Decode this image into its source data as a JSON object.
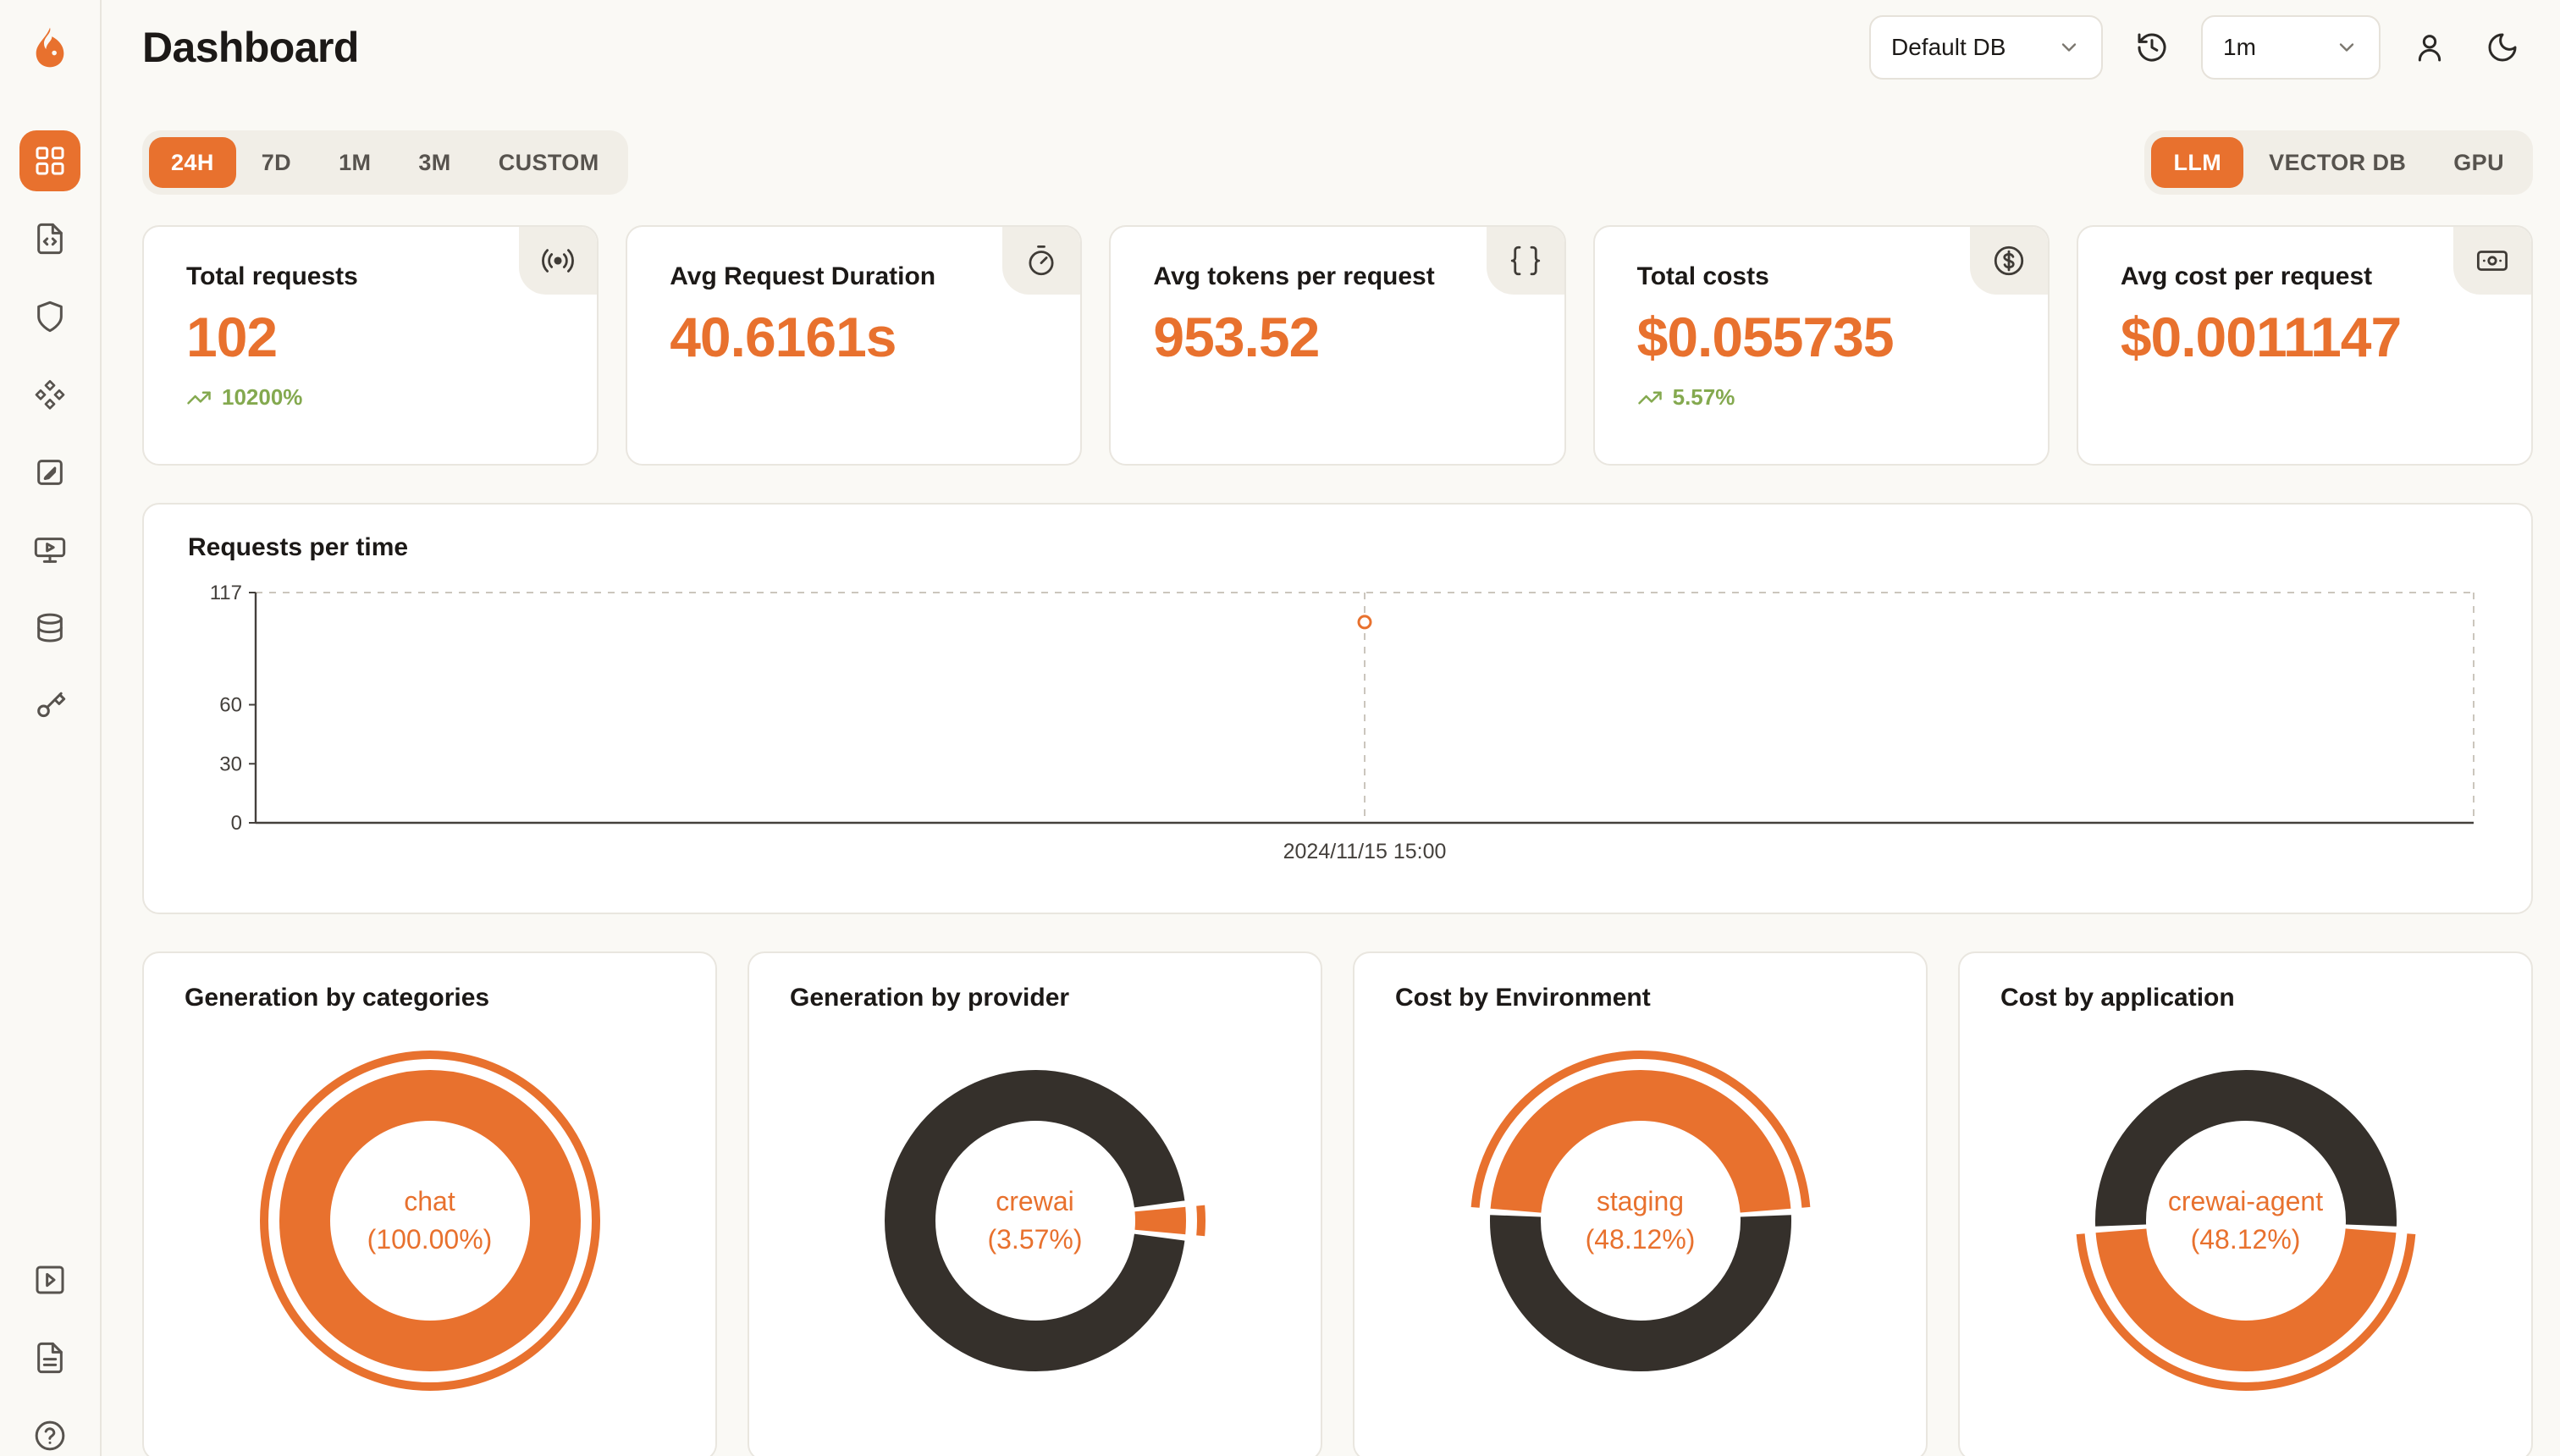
{
  "theme": {
    "accent": "#E8712E",
    "dark": "#35302B",
    "green": "#84A94F",
    "dash": "#CBC6BD",
    "axis": "#44403C",
    "page_bg": "#FAF9F5"
  },
  "app": {
    "title": "Dashboard"
  },
  "header": {
    "db_select": "Default DB",
    "interval_select": "1m"
  },
  "sidebar": {
    "items": [
      {
        "name": "dashboard",
        "active": true
      },
      {
        "name": "traces",
        "active": false
      },
      {
        "name": "security",
        "active": false
      },
      {
        "name": "models",
        "active": false
      },
      {
        "name": "annotations",
        "active": false
      },
      {
        "name": "playground",
        "active": false
      },
      {
        "name": "datasets",
        "active": false
      },
      {
        "name": "api-keys",
        "active": false
      }
    ],
    "bottom_items": [
      {
        "name": "tutorials"
      },
      {
        "name": "docs"
      },
      {
        "name": "help"
      }
    ]
  },
  "controls": {
    "time_ranges": [
      "24H",
      "7D",
      "1M",
      "3M",
      "CUSTOM"
    ],
    "active_time_range": "24H",
    "modes": [
      "LLM",
      "VECTOR DB",
      "GPU"
    ],
    "active_mode": "LLM"
  },
  "stats": [
    {
      "label": "Total requests",
      "value": "102",
      "delta": "10200%",
      "icon": "broadcast-icon"
    },
    {
      "label": "Avg Request Duration",
      "value": "40.6161s",
      "icon": "stopwatch-icon"
    },
    {
      "label": "Avg tokens per request",
      "value": "953.52",
      "icon": "braces-icon"
    },
    {
      "label": "Total costs",
      "value": "$0.055735",
      "delta": "5.57%",
      "icon": "dollar-icon"
    },
    {
      "label": "Avg cost per request",
      "value": "$0.0011147",
      "icon": "banknote-icon"
    }
  ],
  "chart_data": [
    {
      "type": "line",
      "title": "Requests per time",
      "x": [
        "2024/11/15 15:00"
      ],
      "series": [
        {
          "name": "Requests",
          "values": [
            102
          ]
        }
      ],
      "ylim": [
        0,
        117
      ],
      "yticks": [
        0,
        30,
        60,
        117
      ],
      "point_x_fraction": 0.5,
      "grid": "dashed-border",
      "legend": false
    },
    {
      "type": "pie",
      "title": "Generation by categories",
      "center_label": "chat",
      "center_pct": "(100.00%)",
      "rotation": -90,
      "segments": [
        {
          "label": "chat",
          "value": 100,
          "role": "accent",
          "highlight": true
        }
      ]
    },
    {
      "type": "pie",
      "title": "Generation by provider",
      "center_label": "crewai",
      "center_pct": "(3.57%)",
      "rotation": 83.57,
      "segments": [
        {
          "label": "crewai",
          "value": 3.57,
          "role": "accent",
          "highlight": true
        },
        {
          "label": "other",
          "value": 96.43,
          "role": "dark"
        }
      ]
    },
    {
      "type": "pie",
      "title": "Cost by Environment",
      "center_label": "staging",
      "center_pct": "(48.12%)",
      "rotation": -86.62,
      "segments": [
        {
          "label": "staging",
          "value": 48.12,
          "role": "accent",
          "highlight": true
        },
        {
          "label": "other",
          "value": 51.88,
          "role": "dark"
        }
      ]
    },
    {
      "type": "pie",
      "title": "Cost by application",
      "center_label": "crewai-agent",
      "center_pct": "(48.12%)",
      "rotation": 93.38,
      "segments": [
        {
          "label": "crewai-agent",
          "value": 48.12,
          "role": "accent",
          "highlight": true
        },
        {
          "label": "other",
          "value": 51.88,
          "role": "dark"
        }
      ]
    }
  ]
}
